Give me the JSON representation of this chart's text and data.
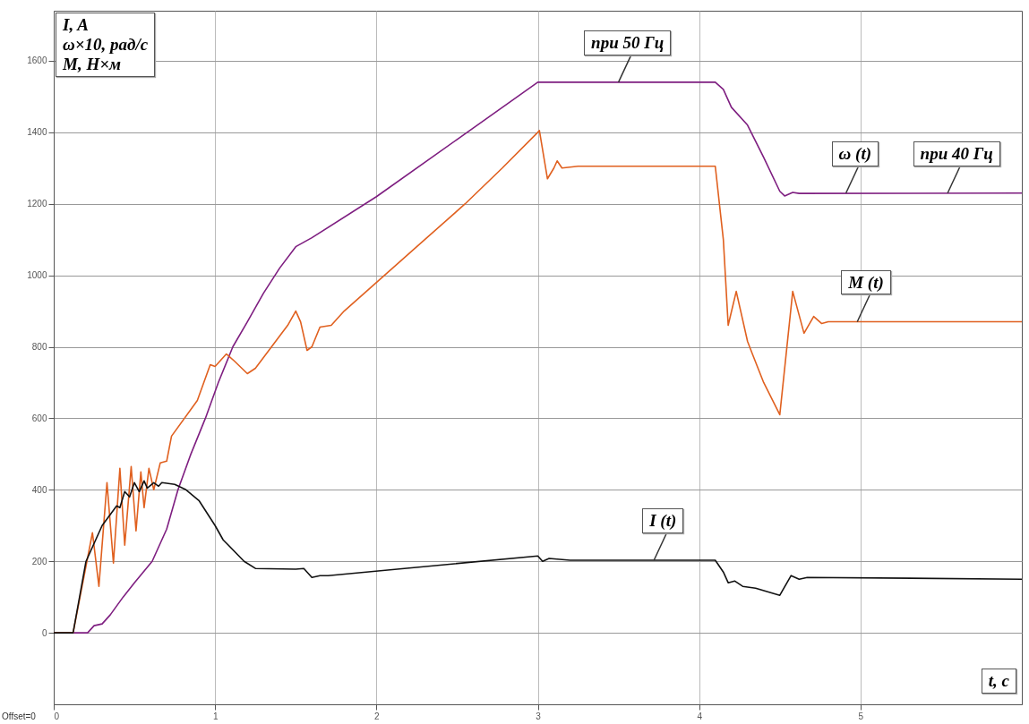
{
  "chart_data": {
    "type": "line",
    "xlabel": "t, c",
    "ylabel": "I, A\nω×10, рад/с\nM, Н×м",
    "xlim": [
      0,
      6
    ],
    "ylim": [
      -200,
      1740
    ],
    "xticks": [
      0,
      1,
      2,
      3,
      4,
      5
    ],
    "yticks": [
      0,
      200,
      400,
      600,
      800,
      1000,
      1200,
      1400,
      1600
    ],
    "grid": true,
    "series": [
      {
        "color": "#7e1e80",
        "x": [
          0,
          0.21,
          0.25,
          0.3,
          0.35,
          0.43,
          0.5,
          0.61,
          0.7,
          0.77,
          0.85,
          0.94,
          1.02,
          1.11,
          1.2,
          1.3,
          1.4,
          1.5,
          1.6,
          2.0,
          2.5,
          3.0,
          3.05,
          4.1,
          4.15,
          4.2,
          4.3,
          4.4,
          4.5,
          4.53,
          4.58,
          4.62,
          6
        ],
        "values": [
          0,
          0,
          20,
          25,
          50,
          100,
          140,
          200,
          290,
          400,
          500,
          600,
          700,
          800,
          870,
          950,
          1020,
          1080,
          1105,
          1220,
          1380,
          1540,
          1540,
          1540,
          1520,
          1470,
          1420,
          1330,
          1235,
          1222,
          1232,
          1229,
          1230
        ]
      },
      {
        "color": "#e0601f",
        "x": [
          0,
          0.12,
          0.24,
          0.28,
          0.33,
          0.37,
          0.41,
          0.44,
          0.48,
          0.51,
          0.54,
          0.56,
          0.59,
          0.62,
          0.66,
          0.7,
          0.73,
          0.89,
          0.97,
          1.0,
          1.05,
          1.07,
          1.12,
          1.2,
          1.25,
          1.35,
          1.45,
          1.5,
          1.53,
          1.57,
          1.6,
          1.65,
          1.72,
          1.8,
          2.05,
          2.3,
          2.55,
          2.78,
          3.0,
          3.01,
          3.06,
          3.1,
          3.12,
          3.15,
          3.25,
          4.1,
          4.15,
          4.18,
          4.23,
          4.3,
          4.33,
          4.4,
          4.5,
          4.58,
          4.65,
          4.71,
          4.76,
          4.8,
          6
        ],
        "values": [
          0,
          0,
          280,
          130,
          420,
          195,
          460,
          245,
          465,
          285,
          450,
          350,
          460,
          400,
          475,
          480,
          550,
          650,
          750,
          745,
          770,
          780,
          760,
          725,
          740,
          800,
          860,
          900,
          870,
          790,
          800,
          855,
          860,
          900,
          1000,
          1100,
          1200,
          1300,
          1400,
          1405,
          1270,
          1300,
          1320,
          1300,
          1305,
          1305,
          1100,
          860,
          955,
          815,
          780,
          700,
          610,
          955,
          838,
          885,
          865,
          870,
          870
        ]
      },
      {
        "color": "#111111",
        "x": [
          0,
          0.12,
          0.2,
          0.3,
          0.39,
          0.41,
          0.44,
          0.47,
          0.5,
          0.53,
          0.56,
          0.58,
          0.62,
          0.65,
          0.67,
          0.75,
          0.82,
          0.9,
          1.0,
          1.05,
          1.18,
          1.25,
          1.5,
          1.55,
          1.6,
          1.65,
          1.7,
          3.0,
          3.03,
          3.07,
          3.2,
          4.1,
          4.15,
          4.18,
          4.22,
          4.27,
          4.35,
          4.5,
          4.57,
          4.62,
          4.67,
          6
        ],
        "values": [
          0,
          0,
          200,
          300,
          355,
          350,
          395,
          380,
          420,
          395,
          425,
          405,
          420,
          410,
          420,
          415,
          400,
          370,
          300,
          260,
          200,
          180,
          178,
          180,
          155,
          160,
          160,
          215,
          200,
          208,
          203,
          203,
          170,
          140,
          145,
          130,
          125,
          105,
          160,
          150,
          155,
          150
        ]
      }
    ],
    "annotations": [
      {
        "text": "при 50 Гц",
        "x": 3.5,
        "y": 1540
      },
      {
        "text": "ω (t)",
        "x": 4.91,
        "y": 1230
      },
      {
        "text": "при 40 Гц",
        "x": 5.54,
        "y": 1230
      },
      {
        "text": "M (t)",
        "x": 4.98,
        "y": 870
      },
      {
        "text": "I (t)",
        "x": 3.72,
        "y": 203
      },
      "Offset=0"
    ]
  }
}
